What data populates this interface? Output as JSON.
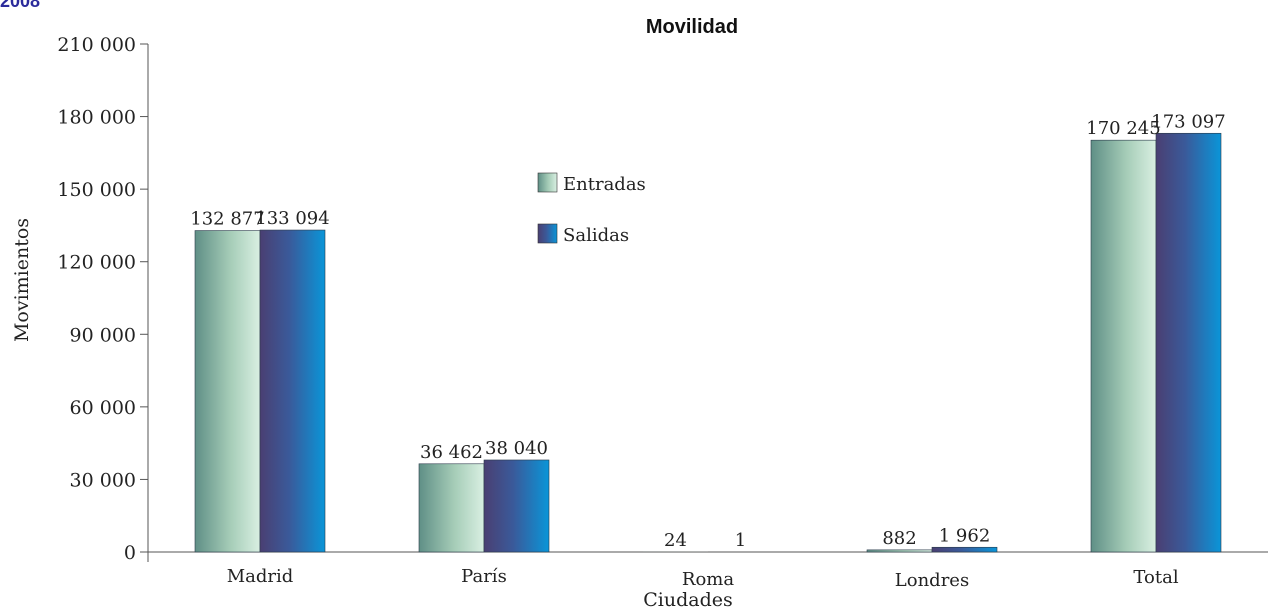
{
  "header": {
    "top_mark": "2008"
  },
  "chart_data": {
    "type": "bar",
    "title": "Movilidad",
    "xlabel": "Ciudades",
    "ylabel": "Movimientos",
    "ylim": [
      0,
      210000
    ],
    "yticks": [
      0,
      30000,
      60000,
      90000,
      120000,
      150000,
      180000,
      210000
    ],
    "ytick_labels": [
      "0",
      "30 000",
      "60 000",
      "90 000",
      "120 000",
      "150 000",
      "180 000",
      "210 000"
    ],
    "categories": [
      "Madrid",
      "París",
      "Roma",
      "Londres",
      "Total"
    ],
    "series": [
      {
        "name": "Entradas",
        "values": [
          132877,
          36462,
          24,
          882,
          170245
        ],
        "labels": [
          "132 877",
          "36 462",
          "24",
          "882",
          "170 245"
        ],
        "color": "#8ac3a6"
      },
      {
        "name": "Salidas",
        "values": [
          133094,
          38040,
          1,
          1962,
          173097
        ],
        "labels": [
          "133 094",
          "38 040",
          "1",
          "1 962",
          "173 097"
        ],
        "color": "#1a8ccf"
      }
    ],
    "legend_position": "center",
    "grid": false
  }
}
